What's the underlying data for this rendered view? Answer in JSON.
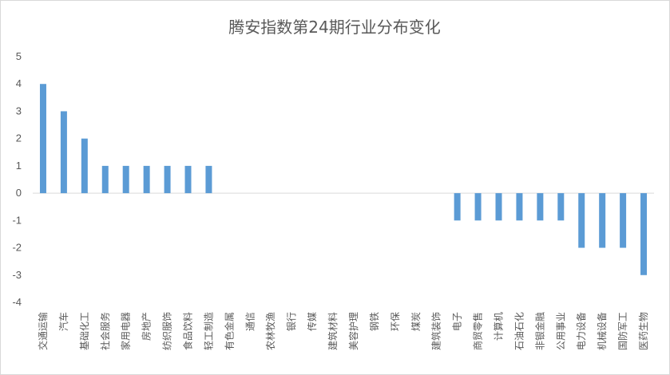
{
  "chart_data": {
    "type": "bar",
    "title": "腾安指数第24期行业分布变化",
    "xlabel": "",
    "ylabel": "",
    "ylim": [
      -4,
      5
    ],
    "yticks": [
      5,
      4,
      3,
      2,
      1,
      0,
      -1,
      -2,
      -3,
      -4
    ],
    "grid": false,
    "legend": "none",
    "bar_color": "#5b9bd5",
    "categories": [
      "交通运输",
      "汽车",
      "基础化工",
      "社会服务",
      "家用电器",
      "房地产",
      "纺织服饰",
      "食品饮料",
      "轻工制造",
      "有色金属",
      "通信",
      "农林牧渔",
      "银行",
      "传媒",
      "建筑材料",
      "美容护理",
      "钢铁",
      "环保",
      "煤炭",
      "建筑装饰",
      "电子",
      "商贸零售",
      "计算机",
      "石油石化",
      "非银金融",
      "公用事业",
      "电力设备",
      "机械设备",
      "国防军工",
      "医药生物"
    ],
    "values": [
      4,
      3,
      2,
      1,
      1,
      1,
      1,
      1,
      1,
      0,
      0,
      0,
      0,
      0,
      0,
      0,
      0,
      0,
      0,
      0,
      -1,
      -1,
      -1,
      -1,
      -1,
      -1,
      -2,
      -2,
      -2,
      -3
    ]
  }
}
